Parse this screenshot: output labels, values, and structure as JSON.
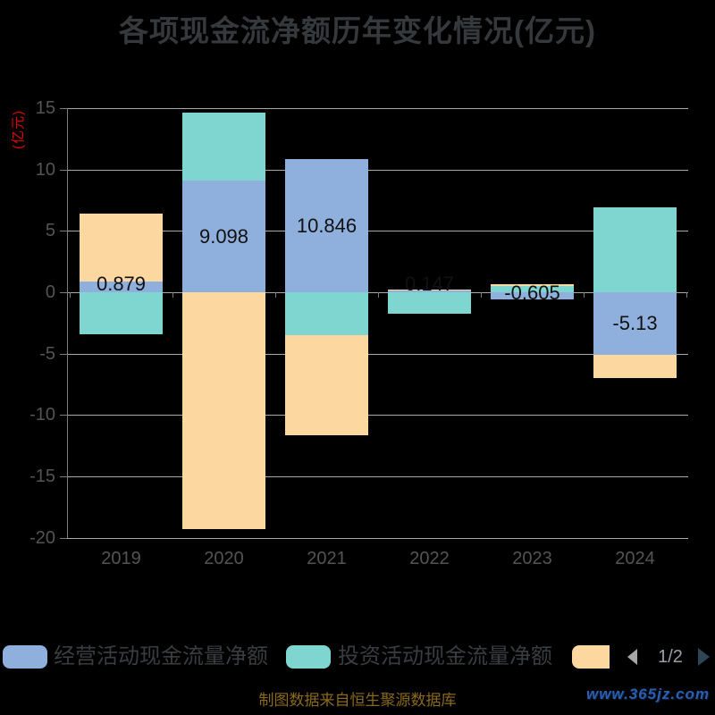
{
  "title": "各项现金流净额历年变化情况(亿元)",
  "y_axis_unit": "(亿元)",
  "colors": {
    "operating": "#8fafdc",
    "investing": "#7fd6d0",
    "financing": "#fcd7a0",
    "title_text": "#36393c",
    "axis_text": "#545454",
    "grid_line": "#a8a8a8",
    "axis_line": "#7d7d7d",
    "unit_label": "#e60000",
    "bar_label": "#111111",
    "legend_text": "#3a3d40",
    "pager_text": "#9aa0a4",
    "pager_prev": "#a6a6a6",
    "pager_next": "#2f4554",
    "source_text": "#8a691c",
    "watermark": "#2b5fad"
  },
  "chart_data": {
    "type": "bar",
    "stacked": true,
    "title": "各项现金流净额历年变化情况(亿元)",
    "ylabel": "(亿元)",
    "ylim": [
      -20,
      15
    ],
    "y_ticks": [
      15,
      10,
      5,
      0,
      -5,
      -10,
      -15,
      -20
    ],
    "grid": true,
    "legend_position": "bottom",
    "categories": [
      "2019",
      "2020",
      "2021",
      "2022",
      "2023",
      "2024"
    ],
    "series": [
      {
        "key": "operating",
        "name": "经营活动现金流量净额",
        "values": [
          0.879,
          9.098,
          10.846,
          0.147,
          -0.605,
          -5.13
        ],
        "labels": [
          "0.879",
          "9.098",
          "10.846",
          "0.147",
          "-0.605",
          "-5.13"
        ]
      },
      {
        "key": "investing",
        "name": "投资活动现金流量净额",
        "values": [
          -3.43,
          5.53,
          -3.5,
          -1.75,
          0.5,
          6.9
        ]
      },
      {
        "key": "financing",
        "name": "",
        "values": [
          5.52,
          -19.3,
          -8.15,
          0.1,
          0.18,
          -1.87
        ]
      }
    ]
  },
  "legend": {
    "items": [
      {
        "label": "经营活动现金流量净额",
        "color_key": "operating"
      },
      {
        "label": "投资活动现金流量净额",
        "color_key": "investing"
      },
      {
        "label": "",
        "color_key": "financing"
      }
    ],
    "pager": {
      "page_text": "1/2"
    }
  },
  "footer": {
    "source_text": "制图数据来自恒生聚源数据库",
    "watermark": "www.365jz.com"
  }
}
